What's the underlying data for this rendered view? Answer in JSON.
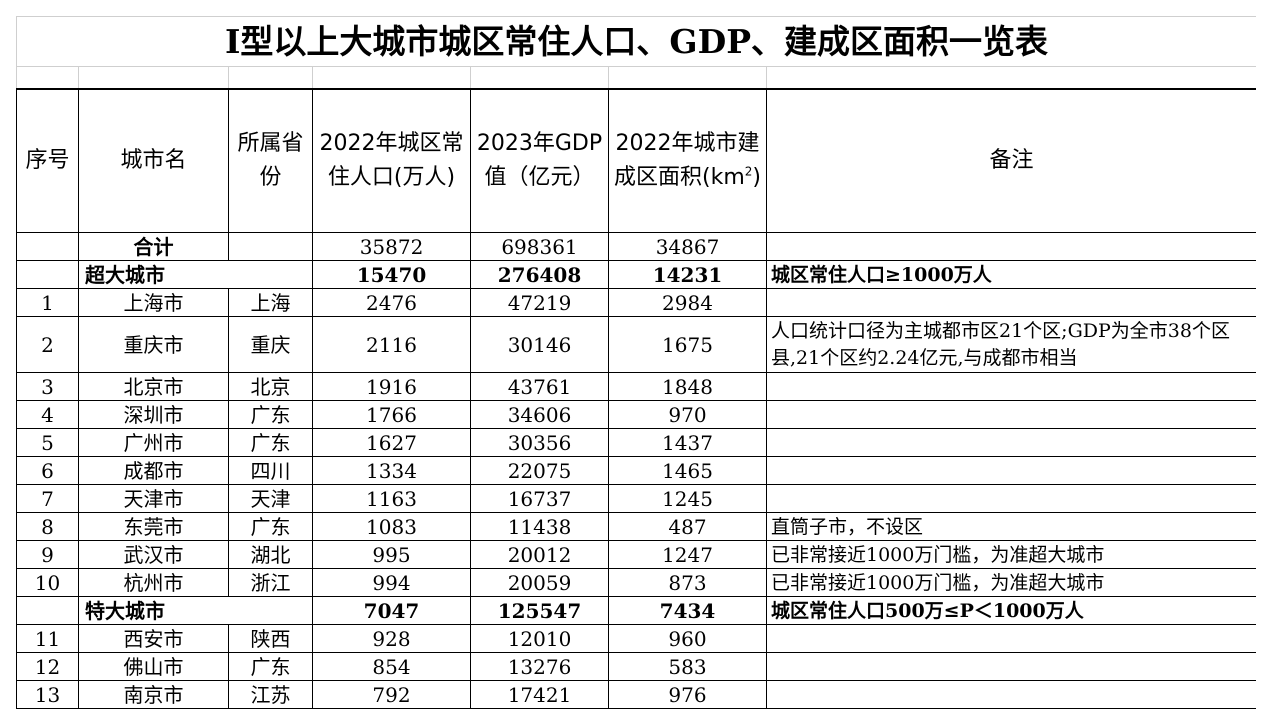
{
  "title": "Ⅰ型以上大城市城区常住人口、GDP、建成区面积一览表",
  "headers": {
    "index": "序号",
    "city": "城市名",
    "province": "所属省份",
    "population": "2022年城区常住人口(万人)",
    "gdp": "2023年GDP值（亿元）",
    "area_main": "2022年城市建成区面积(km",
    "area_sup": "2",
    "area_close": ")",
    "note": "备注"
  },
  "total": {
    "label": "合计",
    "population": "35872",
    "gdp": "698361",
    "area": "34867"
  },
  "groups": [
    {
      "name": "超大城市",
      "population": "15470",
      "gdp": "276408",
      "area": "14231",
      "note": "城区常住人口≥1000万人",
      "rows": [
        {
          "index": "1",
          "city": "上海市",
          "province": "上海",
          "population": "2476",
          "gdp": "47219",
          "area": "2984",
          "note": ""
        },
        {
          "index": "2",
          "city": "重庆市",
          "province": "重庆",
          "population": "2116",
          "gdp": "30146",
          "area": "1675",
          "note": "人口统计口径为主城都市区21个区;GDP为全市38个区县,21个区约2.24亿元,与成都市相当"
        },
        {
          "index": "3",
          "city": "北京市",
          "province": "北京",
          "population": "1916",
          "gdp": "43761",
          "area": "1848",
          "note": ""
        },
        {
          "index": "4",
          "city": "深圳市",
          "province": "广东",
          "population": "1766",
          "gdp": "34606",
          "area": "970",
          "note": ""
        },
        {
          "index": "5",
          "city": "广州市",
          "province": "广东",
          "population": "1627",
          "gdp": "30356",
          "area": "1437",
          "note": ""
        },
        {
          "index": "6",
          "city": "成都市",
          "province": "四川",
          "population": "1334",
          "gdp": "22075",
          "area": "1465",
          "note": ""
        },
        {
          "index": "7",
          "city": "天津市",
          "province": "天津",
          "population": "1163",
          "gdp": "16737",
          "area": "1245",
          "note": ""
        },
        {
          "index": "8",
          "city": "东莞市",
          "province": "广东",
          "population": "1083",
          "gdp": "11438",
          "area": "487",
          "note": "直筒子市，不设区"
        },
        {
          "index": "9",
          "city": "武汉市",
          "province": "湖北",
          "population": "995",
          "gdp": "20012",
          "area": "1247",
          "note": "已非常接近1000万门槛，为准超大城市"
        },
        {
          "index": "10",
          "city": "杭州市",
          "province": "浙江",
          "population": "994",
          "gdp": "20059",
          "area": "873",
          "note": "已非常接近1000万门槛，为准超大城市"
        }
      ]
    },
    {
      "name": "特大城市",
      "population": "7047",
      "gdp": "125547",
      "area": "7434",
      "note": "城区常住人口500万≤P＜1000万人",
      "rows": [
        {
          "index": "11",
          "city": "西安市",
          "province": "陕西",
          "population": "928",
          "gdp": "12010",
          "area": "960",
          "note": ""
        },
        {
          "index": "12",
          "city": "佛山市",
          "province": "广东",
          "population": "854",
          "gdp": "13276",
          "area": "583",
          "note": ""
        },
        {
          "index": "13",
          "city": "南京市",
          "province": "江苏",
          "population": "792",
          "gdp": "17421",
          "area": "976",
          "note": ""
        }
      ]
    }
  ]
}
